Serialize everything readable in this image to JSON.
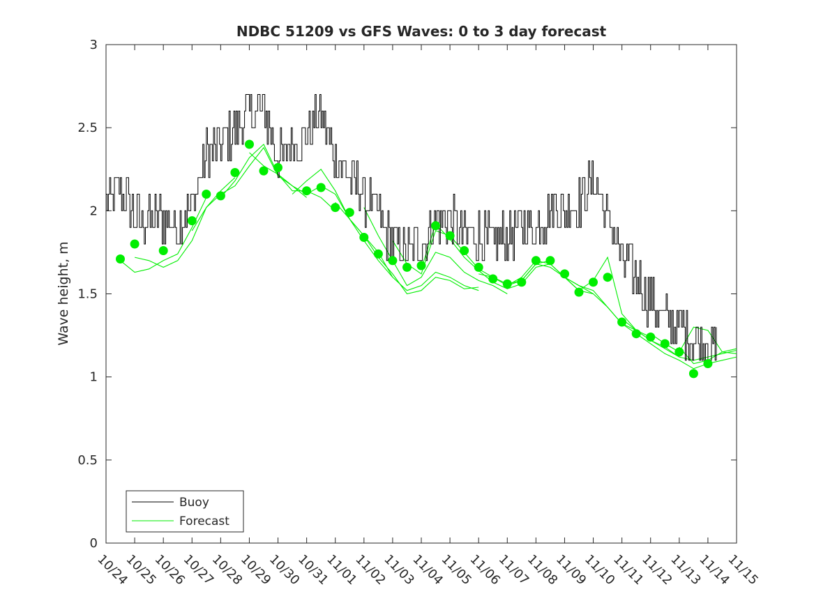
{
  "chart_data": {
    "type": "line",
    "title": "NDBC 51209 vs GFS Waves: 0 to 3 day forecast",
    "xlabel": "",
    "ylabel": "Wave height, m",
    "ylim": [
      0,
      3
    ],
    "xlim": [
      0,
      22
    ],
    "y_ticks": [
      0,
      0.5,
      1,
      1.5,
      2,
      2.5,
      3
    ],
    "y_tick_labels": [
      "0",
      "0.5",
      "1",
      "1.5",
      "2",
      "2.5",
      "3"
    ],
    "x_ticks": [
      0,
      1,
      2,
      3,
      4,
      5,
      6,
      7,
      8,
      9,
      10,
      11,
      12,
      13,
      14,
      15,
      16,
      17,
      18,
      19,
      20,
      21,
      22
    ],
    "x_tick_labels": [
      "10/24",
      "10/25",
      "10/26",
      "10/27",
      "10/28",
      "10/29",
      "10/30",
      "10/31",
      "11/01",
      "11/02",
      "11/03",
      "11/04",
      "11/05",
      "11/06",
      "11/07",
      "11/08",
      "11/09",
      "11/10",
      "11/11",
      "11/12",
      "11/13",
      "11/14",
      "11/15"
    ],
    "x_units": "days since 10/24 00:00",
    "legend": {
      "position": "bottom-left",
      "entries": [
        "Buoy",
        "Forecast"
      ]
    },
    "colors": {
      "buoy": "#000000",
      "forecast": "#00ee00",
      "axis": "#262626"
    },
    "series": [
      {
        "name": "Buoy",
        "style": "line",
        "x": [
          0,
          0.5,
          1,
          1.5,
          2,
          2.5,
          3,
          3.5,
          4,
          4.5,
          5,
          5.5,
          6,
          6.5,
          7,
          7.5,
          8,
          8.5,
          9,
          9.5,
          10,
          10.5,
          11,
          11.5,
          12,
          12.5,
          13,
          13.5,
          14,
          14.5,
          15,
          15.5,
          16,
          16.5,
          17,
          17.5,
          18,
          18.5,
          19,
          19.5,
          20,
          20.5,
          21,
          21.3
        ],
        "values": [
          2.05,
          2.15,
          1.95,
          1.95,
          1.95,
          1.9,
          2.05,
          2.35,
          2.4,
          2.5,
          2.6,
          2.6,
          2.3,
          2.4,
          2.45,
          2.6,
          2.3,
          2.2,
          2.1,
          1.95,
          1.8,
          1.75,
          1.8,
          1.95,
          1.95,
          1.85,
          1.85,
          1.8,
          1.85,
          1.9,
          1.9,
          2.0,
          2.0,
          2.05,
          2.2,
          1.95,
          1.7,
          1.6,
          1.45,
          1.35,
          1.3,
          1.25,
          1.2,
          1.15
        ],
        "noise_amplitude": 0.15
      },
      {
        "name": "Forecast",
        "style": "markers",
        "x": [
          0.5,
          1,
          2,
          3,
          3.5,
          4,
          4.5,
          5,
          5.5,
          6,
          7,
          7.5,
          8,
          8.5,
          9,
          9.5,
          10,
          10.5,
          11,
          11.5,
          12,
          12.5,
          13,
          13.5,
          14,
          14.5,
          15,
          15.5,
          16,
          16.5,
          17,
          17.5,
          18,
          18.5,
          19,
          19.5,
          20,
          20.5,
          21
        ],
        "values": [
          1.71,
          1.8,
          1.76,
          1.94,
          2.1,
          2.09,
          2.23,
          2.4,
          2.24,
          2.26,
          2.12,
          2.14,
          2.02,
          1.99,
          1.84,
          1.74,
          1.7,
          1.66,
          1.67,
          1.91,
          1.85,
          1.76,
          1.66,
          1.59,
          1.56,
          1.57,
          1.7,
          1.7,
          1.62,
          1.51,
          1.57,
          1.6,
          1.33,
          1.26,
          1.24,
          1.2,
          1.15,
          1.02,
          1.08
        ]
      },
      {
        "name": "Forecast",
        "style": "line",
        "x": [
          0.5,
          1,
          1.5,
          2,
          2.5,
          3,
          3.5
        ],
        "values": [
          1.7,
          1.63,
          1.65,
          1.7,
          1.74,
          1.9,
          2.08
        ]
      },
      {
        "name": "Forecast",
        "style": "line",
        "x": [
          1,
          1.5,
          2,
          2.5,
          3,
          3.5,
          4,
          4.5
        ],
        "values": [
          1.72,
          1.7,
          1.66,
          1.7,
          1.82,
          2.02,
          2.12,
          2.2
        ]
      },
      {
        "name": "Forecast",
        "style": "line",
        "x": [
          3,
          3.5,
          4,
          4.5,
          5,
          5.5,
          6,
          6.5,
          7
        ],
        "values": [
          1.88,
          2.02,
          2.1,
          2.15,
          2.27,
          2.38,
          2.21,
          2.15,
          2.08
        ]
      },
      {
        "name": "Forecast",
        "style": "line",
        "x": [
          4,
          4.5,
          5,
          5.5,
          6,
          6.5,
          7,
          7.5,
          8
        ],
        "values": [
          2.08,
          2.18,
          2.32,
          2.4,
          2.22,
          2.12,
          2.12,
          2.08,
          2.0
        ]
      },
      {
        "name": "Forecast",
        "style": "line",
        "x": [
          5,
          5.5,
          6,
          6.5,
          7,
          7.5,
          8,
          8.5,
          9,
          9.5,
          10
        ],
        "values": [
          2.35,
          2.27,
          2.22,
          2.15,
          2.1,
          2.15,
          2.1,
          1.95,
          1.82,
          1.7,
          1.6
        ]
      },
      {
        "name": "Forecast",
        "style": "line",
        "x": [
          6.5,
          7,
          7.5,
          8,
          8.5,
          9,
          9.5,
          10,
          10.5,
          11,
          11.5,
          12,
          12.5,
          13
        ],
        "values": [
          2.1,
          2.18,
          2.25,
          2.12,
          1.95,
          1.85,
          1.75,
          1.6,
          1.52,
          1.55,
          1.63,
          1.6,
          1.55,
          1.52
        ]
      },
      {
        "name": "Forecast",
        "style": "line",
        "x": [
          8,
          8.5,
          9,
          9.5,
          10,
          10.5,
          11,
          11.5,
          12,
          12.5,
          13
        ],
        "values": [
          2.05,
          1.95,
          1.85,
          1.72,
          1.62,
          1.5,
          1.52,
          1.6,
          1.58,
          1.53,
          1.54
        ]
      },
      {
        "name": "Forecast",
        "style": "line",
        "x": [
          9,
          9.5,
          10,
          10.5,
          11,
          11.5,
          12,
          12.5,
          13,
          13.5,
          14
        ],
        "values": [
          2.02,
          1.85,
          1.7,
          1.55,
          1.6,
          1.75,
          1.72,
          1.63,
          1.58,
          1.55,
          1.5
        ]
      },
      {
        "name": "Forecast",
        "style": "line",
        "x": [
          10,
          10.5,
          11,
          11.5,
          12,
          12.5,
          13,
          13.5,
          14,
          14.5,
          15,
          15.5
        ],
        "values": [
          1.82,
          1.68,
          1.62,
          1.88,
          1.85,
          1.75,
          1.65,
          1.6,
          1.56,
          1.58,
          1.68,
          1.7
        ]
      },
      {
        "name": "Forecast",
        "style": "line",
        "x": [
          11,
          11.5,
          12,
          12.5,
          13,
          13.5,
          14,
          14.5,
          15,
          15.5,
          16,
          16.5,
          17
        ],
        "values": [
          1.65,
          1.92,
          1.83,
          1.72,
          1.64,
          1.57,
          1.53,
          1.56,
          1.66,
          1.68,
          1.6,
          1.52,
          1.5
        ]
      },
      {
        "name": "Forecast",
        "style": "line",
        "x": [
          13,
          13.5,
          14,
          14.5,
          15,
          15.5,
          16,
          16.5,
          17,
          17.5,
          18,
          18.5,
          19
        ],
        "values": [
          1.62,
          1.6,
          1.55,
          1.58,
          1.68,
          1.66,
          1.6,
          1.55,
          1.5,
          1.42,
          1.32,
          1.28,
          1.24
        ]
      },
      {
        "name": "Forecast",
        "style": "line",
        "x": [
          14,
          14.5,
          15,
          15.5,
          16,
          16.5,
          17,
          17.5,
          18,
          18.5,
          19,
          19.5,
          20
        ],
        "values": [
          1.55,
          1.6,
          1.7,
          1.68,
          1.6,
          1.52,
          1.58,
          1.72,
          1.38,
          1.28,
          1.22,
          1.18,
          1.12
        ]
      },
      {
        "name": "Forecast",
        "style": "line",
        "x": [
          16,
          16.5,
          17,
          17.5,
          18,
          18.5,
          19,
          19.5,
          20,
          20.5,
          21,
          21.5,
          22
        ],
        "values": [
          1.6,
          1.55,
          1.52,
          1.42,
          1.32,
          1.26,
          1.2,
          1.14,
          1.1,
          1.05,
          1.08,
          1.1,
          1.12
        ]
      },
      {
        "name": "Forecast",
        "style": "line",
        "x": [
          18,
          18.5,
          19,
          19.5,
          20,
          20.5,
          21,
          21.5,
          22
        ],
        "values": [
          1.35,
          1.28,
          1.22,
          1.17,
          1.12,
          1.1,
          1.12,
          1.14,
          1.16
        ]
      },
      {
        "name": "Forecast",
        "style": "line",
        "x": [
          19,
          19.5,
          20,
          20.5,
          21,
          21.5,
          22
        ],
        "values": [
          1.26,
          1.2,
          1.15,
          1.3,
          1.28,
          1.15,
          1.14
        ]
      },
      {
        "name": "Forecast",
        "style": "line",
        "x": [
          20,
          20.5,
          21,
          21.5,
          22
        ],
        "values": [
          1.18,
          1.08,
          1.1,
          1.15,
          1.17
        ]
      }
    ]
  }
}
